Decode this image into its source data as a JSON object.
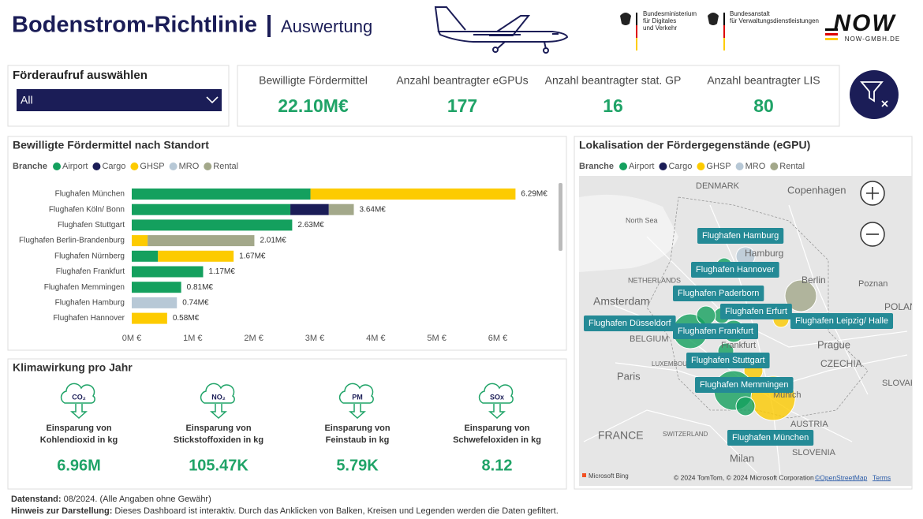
{
  "header": {
    "title": "Bodenstrom-Richtlinie",
    "subtitle": "Auswertung"
  },
  "logos": {
    "ministry_lines": [
      "Bundesministerium",
      "für Digitales",
      "und Verkehr"
    ],
    "agency_lines": [
      "Bundesanstalt",
      "für Verwaltungsdienstleistungen"
    ],
    "now_mark": "NOW",
    "now_url": "NOW-GMBH.DE"
  },
  "filter": {
    "label": "Förderaufruf auswählen",
    "value": "All"
  },
  "kpis": [
    {
      "label": "Bewilligte Fördermittel",
      "value": "22.10M€"
    },
    {
      "label": "Anzahl beantragter eGPUs",
      "value": "177"
    },
    {
      "label": "Anzahl beantragter stat. GP",
      "value": "16"
    },
    {
      "label": "Anzahl beantragter LIS",
      "value": "80"
    }
  ],
  "chart_data": {
    "type": "bar",
    "orientation": "horizontal",
    "stacked": true,
    "title": "Bewilligte Fördermittel nach Standort",
    "legend_title": "Branche",
    "categories": [
      "Flughafen München",
      "Flughafen Köln/ Bonn",
      "Flughafen Stuttgart",
      "Flughafen Berlin-Brandenburg",
      "Flughafen Nürnberg",
      "Flughafen Frankfurt",
      "Flughafen Memmingen",
      "Flughafen Hamburg",
      "Flughafen Hannover"
    ],
    "series": [
      {
        "name": "Airport",
        "color": "#14a05e",
        "values": [
          2930000,
          2600000,
          2630000,
          null,
          430000,
          1170000,
          810000,
          null,
          null
        ]
      },
      {
        "name": "Cargo",
        "color": "#1b1d57",
        "values": [
          null,
          630000,
          null,
          null,
          null,
          null,
          null,
          null,
          null
        ]
      },
      {
        "name": "GHSP",
        "color": "#fdcb00",
        "values": [
          3360000,
          null,
          null,
          260000,
          1240000,
          null,
          null,
          null,
          580000
        ]
      },
      {
        "name": "MRO",
        "color": "#b7c8d6",
        "values": [
          null,
          null,
          null,
          null,
          null,
          null,
          null,
          740000,
          null
        ]
      },
      {
        "name": "Rental",
        "color": "#a3a88a",
        "values": [
          null,
          410000,
          null,
          1750000,
          null,
          null,
          null,
          null,
          null
        ]
      }
    ],
    "value_labels": [
      "6.29M€",
      "3.64M€",
      "2.63M€",
      "2.01M€",
      "1.67M€",
      "1.17M€",
      "0.81M€",
      "0.74M€",
      "0.58M€"
    ],
    "xlim": [
      0,
      6900000
    ],
    "xticks": [
      {
        "value": 0,
        "label": "0M €"
      },
      {
        "value": 1000000,
        "label": "1M €"
      },
      {
        "value": 2000000,
        "label": "2M €"
      },
      {
        "value": 3000000,
        "label": "3M €"
      },
      {
        "value": 4000000,
        "label": "4M €"
      },
      {
        "value": 5000000,
        "label": "5M €"
      },
      {
        "value": 6000000,
        "label": "6M €"
      }
    ]
  },
  "climate": {
    "title": "Klimawirkung pro Jahr",
    "items": [
      {
        "icon": "CO₂",
        "label_lines": [
          "Einsparung von",
          "Kohlendioxid in kg"
        ],
        "value": "6.96M"
      },
      {
        "icon": "NO₂",
        "label_lines": [
          "Einsparung von",
          "Stickstoffoxiden in kg"
        ],
        "value": "105.47K"
      },
      {
        "icon": "PM",
        "label_lines": [
          "Einsparung von",
          "Feinstaub in kg"
        ],
        "value": "5.79K"
      },
      {
        "icon": "SOx",
        "label_lines": [
          "Einsparung von",
          "Schwefeloxiden in kg"
        ],
        "value": "8.12"
      }
    ]
  },
  "map": {
    "title": "Lokalisation der Fördergegenstände (eGPU)",
    "places": [
      "DENMARK",
      "Copenhagen",
      "North Sea",
      "Hamburg",
      "NETHERLANDS",
      "Amsterdam",
      "Berlin",
      "Poznan",
      "POLAND",
      "BELGIUM",
      "Frankfurt",
      "LUXEMBOURG",
      "Prague",
      "CZECHIA",
      "Paris",
      "SLOVAKIA",
      "FRANCE",
      "SWITZERLAND",
      "AUSTRIA",
      "Munich",
      "SLOVENIA",
      "Milan"
    ],
    "airports": [
      "Flughafen Hamburg",
      "Flughafen Hannover",
      "Flughafen Paderborn",
      "Flughafen Erfurt",
      "Flughafen Leipzig/ Halle",
      "Flughafen Düsseldorf",
      "Flughafen Frankfurt",
      "Flughafen Stuttgart",
      "Flughafen Memmingen",
      "Flughafen München"
    ],
    "provider": "Microsoft Bing",
    "copyright": "© 2024 TomTom, © 2024 Microsoft Corporation",
    "osm": "©OpenStreetMap",
    "terms": "Terms"
  },
  "footer": {
    "status_label": "Datenstand:",
    "status_text": "08/2024. (Alle Angaben ohne Gewähr)",
    "hint_label": "Hinweis zur Darstellung:",
    "hint_text": "Dieses Dashboard ist interaktiv. Durch das Anklicken von Balken, Kreisen und Legenden werden die Daten gefiltert."
  }
}
